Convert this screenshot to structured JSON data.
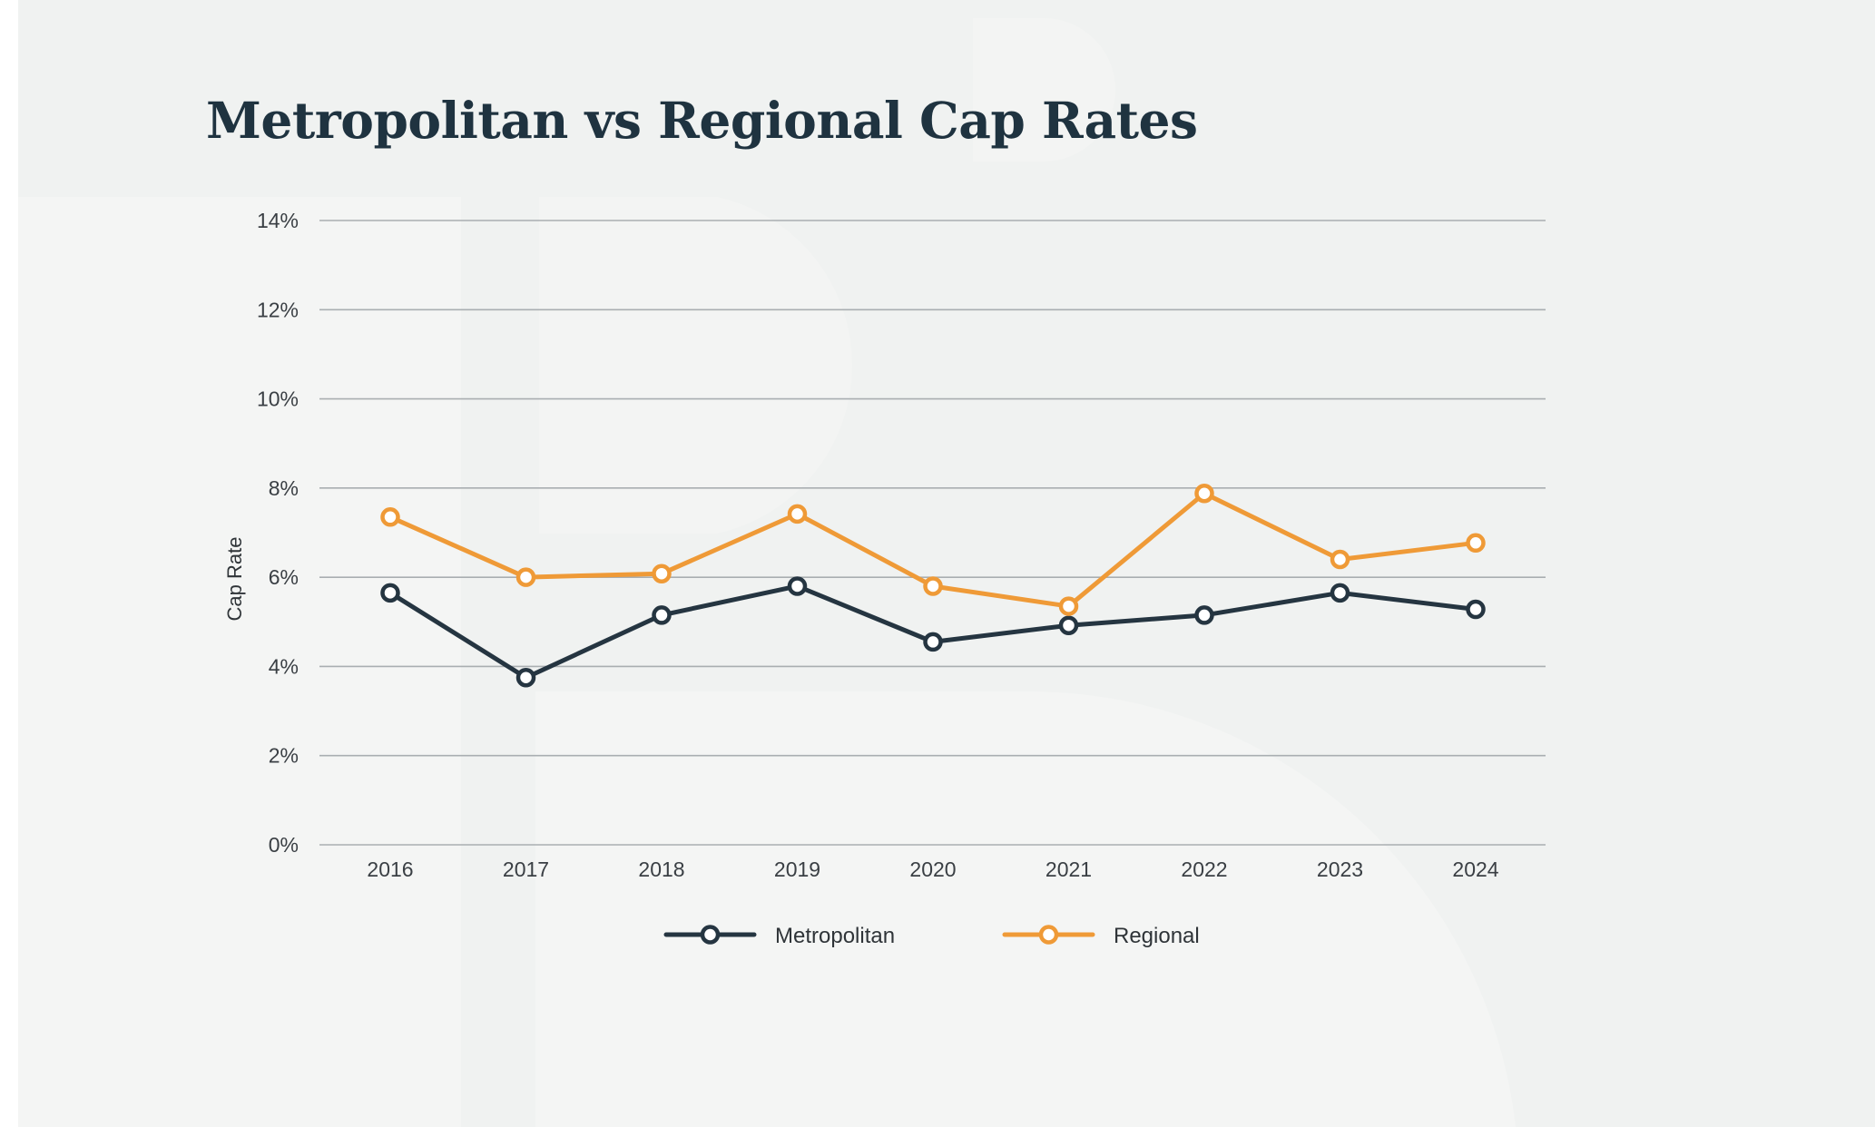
{
  "chart_data": {
    "type": "line",
    "title": "Metropolitan vs Regional Cap Rates",
    "ylabel": "Cap Rate",
    "xlabel": "",
    "categories": [
      "2016",
      "2017",
      "2018",
      "2019",
      "2020",
      "2021",
      "2022",
      "2023",
      "2024"
    ],
    "ylim": [
      0,
      14
    ],
    "yticks": [
      0,
      2,
      4,
      6,
      8,
      10,
      12,
      14
    ],
    "ytick_suffix": "%",
    "grid": true,
    "legend_position": "bottom-center",
    "series": [
      {
        "name": "Metropolitan",
        "color": "#253541",
        "values": [
          5.65,
          3.75,
          5.15,
          5.8,
          4.55,
          4.92,
          5.15,
          5.65,
          5.28
        ]
      },
      {
        "name": "Regional",
        "color": "#ef9a37",
        "values": [
          7.35,
          6.0,
          6.08,
          7.42,
          5.8,
          5.35,
          7.88,
          6.4,
          6.77
        ]
      }
    ]
  }
}
